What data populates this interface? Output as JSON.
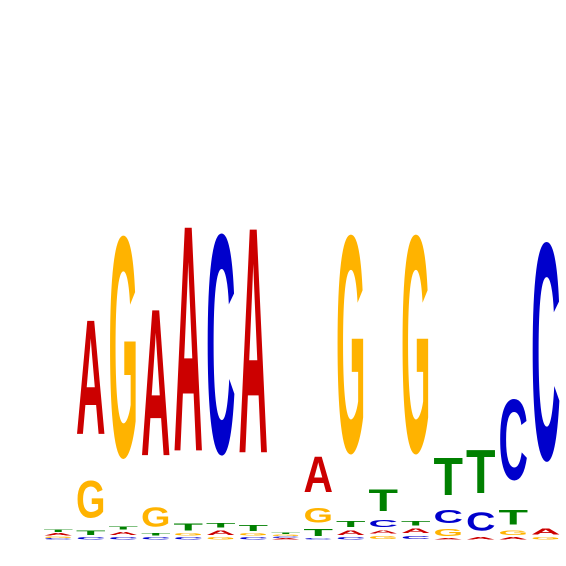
{
  "colors": {
    "A": "#cc0000",
    "C": "#0000cc",
    "G": "#ffb300",
    "T": "#008000"
  },
  "logo": {
    "max_bits": 2,
    "positions": [
      [
        [
          "C",
          0.01
        ],
        [
          "G",
          0.01
        ],
        [
          "A",
          0.02
        ],
        [
          "T",
          0.02
        ]
      ],
      [
        [
          "C",
          0.02
        ],
        [
          "T",
          0.04
        ],
        [
          "G",
          0.32
        ],
        [
          "A",
          1.0
        ]
      ],
      [
        [
          "C",
          0.02
        ],
        [
          "A",
          0.03
        ],
        [
          "T",
          0.03
        ],
        [
          "G",
          1.92
        ]
      ],
      [
        [
          "C",
          0.02
        ],
        [
          "T",
          0.02
        ],
        [
          "G",
          0.17
        ],
        [
          "A",
          1.28
        ]
      ],
      [
        [
          "C",
          0.02
        ],
        [
          "G",
          0.02
        ],
        [
          "T",
          0.06
        ],
        [
          "A",
          1.97
        ]
      ],
      [
        [
          "G",
          0.02
        ],
        [
          "A",
          0.04
        ],
        [
          "T",
          0.04
        ],
        [
          "C",
          1.91
        ]
      ],
      [
        [
          "C",
          0.02
        ],
        [
          "G",
          0.02
        ],
        [
          "T",
          0.05
        ],
        [
          "A",
          1.97
        ]
      ],
      [
        [
          "A",
          0.01
        ],
        [
          "C",
          0.01
        ],
        [
          "G",
          0.01
        ],
        [
          "T",
          0.01
        ]
      ],
      [
        [
          "C",
          0.01
        ],
        [
          "T",
          0.06
        ],
        [
          "G",
          0.13
        ],
        [
          "A",
          0.31
        ]
      ],
      [
        [
          "C",
          0.02
        ],
        [
          "A",
          0.04
        ],
        [
          "T",
          0.05
        ],
        [
          "G",
          1.89
        ]
      ],
      [
        [
          "G",
          0.03
        ],
        [
          "A",
          0.03
        ],
        [
          "C",
          0.06
        ],
        [
          "T",
          0.19
        ]
      ],
      [
        [
          "C",
          0.03
        ],
        [
          "A",
          0.04
        ],
        [
          "T",
          0.04
        ],
        [
          "G",
          1.89
        ]
      ],
      [
        [
          "A",
          0.01
        ],
        [
          "G",
          0.06
        ],
        [
          "C",
          0.11
        ],
        [
          "T",
          0.33
        ]
      ],
      [
        [
          "A",
          0.02
        ],
        [
          "C",
          0.16
        ],
        [
          "T",
          0.38
        ]
      ],
      [
        [
          "A",
          0.02
        ],
        [
          "G",
          0.04
        ],
        [
          "T",
          0.13
        ],
        [
          "C",
          0.7
        ]
      ],
      [
        [
          "G",
          0.02
        ],
        [
          "A",
          0.05
        ],
        [
          "C",
          1.89
        ]
      ]
    ]
  }
}
